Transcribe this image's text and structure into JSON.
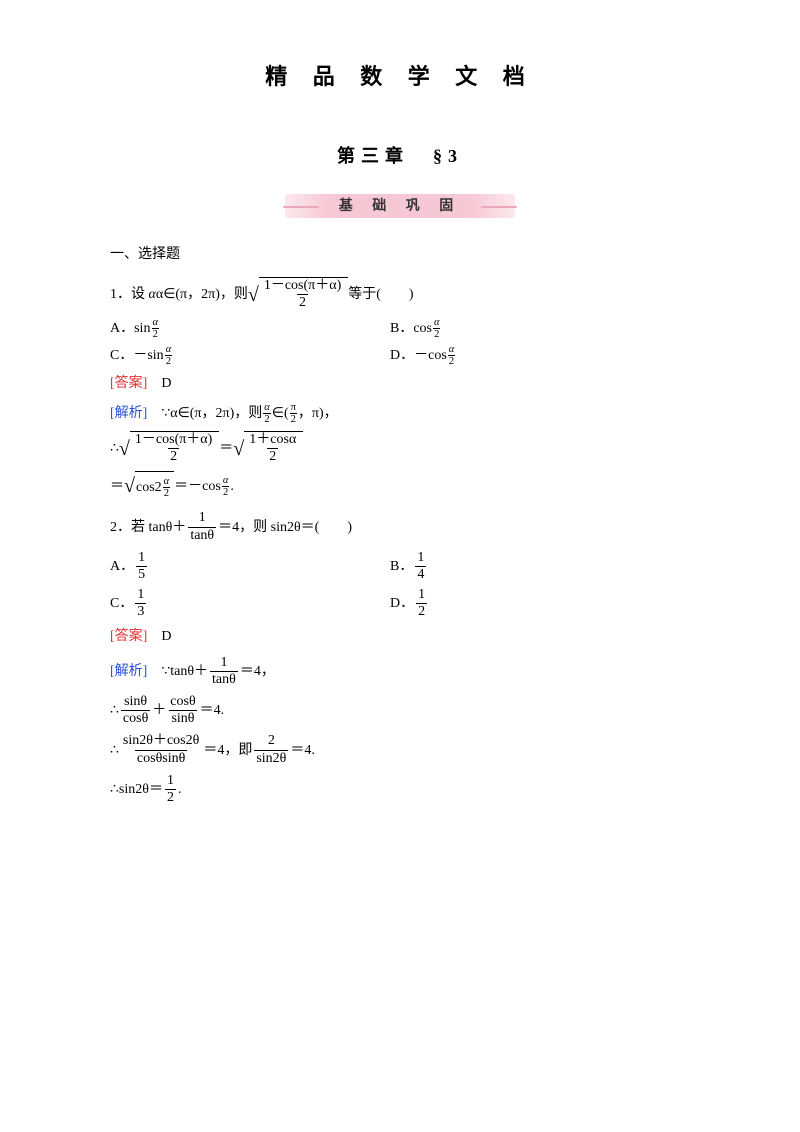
{
  "doc_title": "精 品 数 学 文 档",
  "chapter": "第三章　§3",
  "banner": "基 础 巩 固",
  "heading_choice": "一、选择题",
  "q1": {
    "stem_pre": "1．设",
    "alpha_in": "α∈(π，2π)，则",
    "sqrt_num": "1－cos(π＋α)",
    "sqrt_den": "2",
    "stem_post": "等于(　　)",
    "A_pre": "A．sin",
    "B_pre": "B．cos",
    "C_pre": "C．－sin",
    "D_pre": "D．－cos",
    "frac_num": "α",
    "frac_den": "2"
  },
  "ans1_label": "[答案]",
  "ans1": "D",
  "ana1_label": "[解析]",
  "ana1": {
    "l1_pre": "∵α∈(π，2π)，则",
    "l1_in": "∈(",
    "l1_mid": "，π)，",
    "half_a_num": "α",
    "half_a_den": "2",
    "half_pi_num": "π",
    "half_pi_den": "2",
    "l2_pre": "∴",
    "l2_eq": "＝",
    "l2_rhs_num": "1＋cosα",
    "l2_rhs_den": "2",
    "l3_eq": "＝",
    "l3_cos2": "cos2",
    "l3_neg": "－cos",
    "l3_eq2": "＝",
    "l3_period": "."
  },
  "q2": {
    "stem_pre": "2．若 tanθ＋",
    "tan_frac_num": "1",
    "tan_frac_den": "tanθ",
    "stem_mid": "＝4，则 sin2θ＝(　　)",
    "A": "A．",
    "Av_num": "1",
    "Av_den": "5",
    "B": "B．",
    "Bv_num": "1",
    "Bv_den": "4",
    "C": "C．",
    "Cv_num": "1",
    "Cv_den": "3",
    "D": "D．",
    "Dv_num": "1",
    "Dv_den": "2"
  },
  "ans2_label": "[答案]",
  "ans2": "D",
  "ana2_label": "[解析]",
  "ana2": {
    "l1_pre": "∵tanθ＋",
    "l1_num": "1",
    "l1_den": "tanθ",
    "l1_post": "＝4，",
    "l2_pre": "∴",
    "l2_f1_num": "sinθ",
    "l2_f1_den": "cosθ",
    "l2_plus": "＋",
    "l2_f2_num": "cosθ",
    "l2_f2_den": "sinθ",
    "l2_post": "＝4.",
    "l3_pre": "∴",
    "l3_f1_num": "sin2θ＋cos2θ",
    "l3_f1_den": "cosθsinθ",
    "l3_mid": "＝4，即",
    "l3_f2_num": "2",
    "l3_f2_den": "sin2θ",
    "l3_post": "＝4.",
    "l4_pre": "∴sin2θ＝",
    "l4_num": "1",
    "l4_den": "2",
    "l4_post": "."
  }
}
